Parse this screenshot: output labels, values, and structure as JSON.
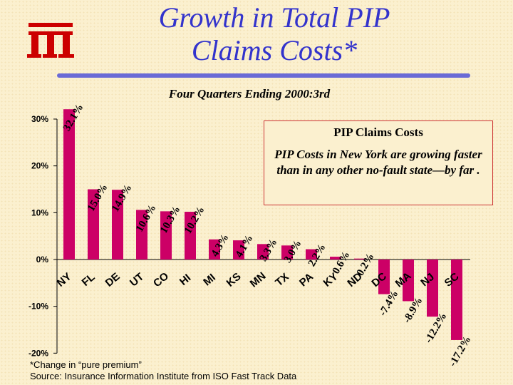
{
  "header": {
    "title_line1": "Growth in Total PIP",
    "title_line2": "Claims Costs*",
    "subtitle": "Four Quarters Ending 2000:3rd",
    "logo_text": "iii"
  },
  "callout": {
    "title": "PIP Claims Costs",
    "text": "PIP Costs in New York are growing faster than in any other no-fault state—by far ."
  },
  "footnote": {
    "line1": "*Change in “pure premium”",
    "line2": "Source:  Insurance Information Institute from ISO Fast Track Data"
  },
  "colors": {
    "bar": "#cc0066",
    "title": "#3333cc",
    "logo": "#cc0000"
  },
  "chart_data": {
    "type": "bar",
    "categories": [
      "NY",
      "FL",
      "DE",
      "UT",
      "CO",
      "HI",
      "MI",
      "KS",
      "MN",
      "TX",
      "PA",
      "KY",
      "ND",
      "DC",
      "MA",
      "NJ",
      "SC"
    ],
    "values": [
      32.1,
      15.0,
      14.9,
      10.6,
      10.3,
      10.2,
      4.3,
      4.1,
      3.3,
      3.0,
      2.2,
      0.6,
      0.2,
      -7.4,
      -8.9,
      -12.2,
      -17.2
    ],
    "data_labels": [
      "32.1%",
      "15.0%",
      "14.9%",
      "10.6%",
      "10.3%",
      "10.2%",
      "4.3%",
      "4.1%",
      "3.3%",
      "3.0%",
      "2.2%",
      "0.6%",
      "0.2%",
      "-7.4%",
      "-8.9%",
      "-12.2%",
      "-17.2%"
    ],
    "ylim": [
      -20,
      30
    ],
    "yticks": [
      30,
      20,
      10,
      0,
      -10,
      -20
    ],
    "ytick_labels": [
      "30%",
      "20%",
      "10%",
      "0%",
      "-10%",
      "-20%"
    ],
    "xlabel": "",
    "ylabel": "",
    "grid": false
  }
}
